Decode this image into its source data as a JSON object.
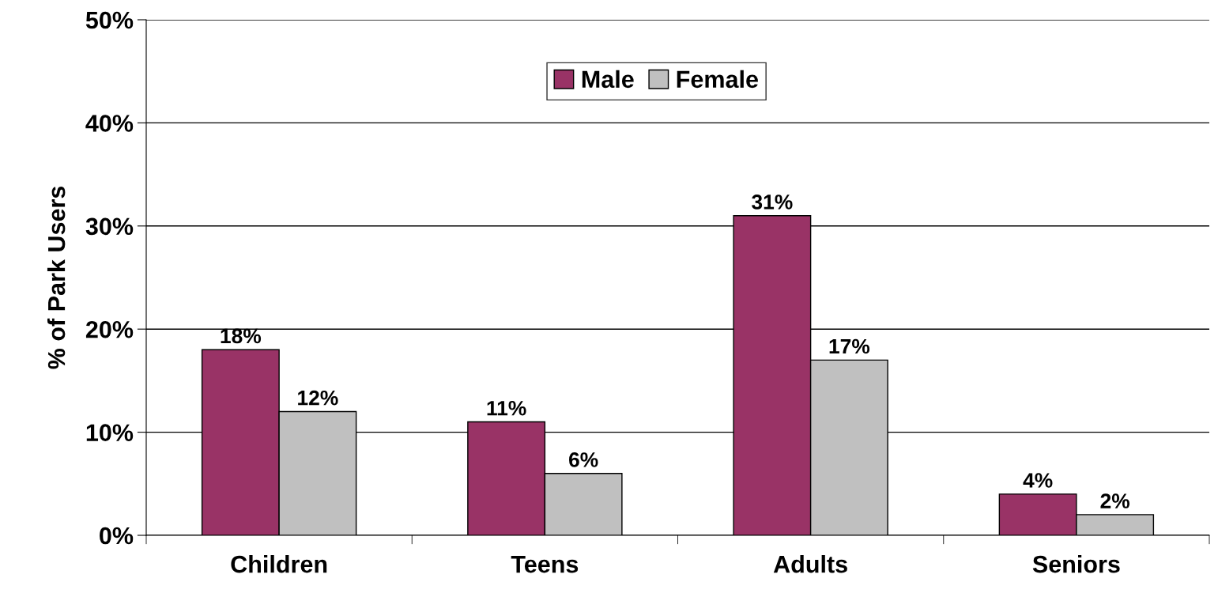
{
  "chart_data": {
    "type": "bar",
    "ylabel": "% of Park Users",
    "categories": [
      "Children",
      "Teens",
      "Adults",
      "Seniors"
    ],
    "series": [
      {
        "name": "Male",
        "color": "#993366",
        "values": [
          18,
          11,
          31,
          4
        ],
        "value_labels": [
          "18%",
          "11%",
          "31%",
          "4%"
        ]
      },
      {
        "name": "Female",
        "color": "#c0c0c0",
        "values": [
          12,
          6,
          17,
          2
        ],
        "value_labels": [
          "12%",
          "6%",
          "17%",
          "2%"
        ]
      }
    ],
    "ylim": [
      0,
      50
    ],
    "yticks": [
      {
        "value": 0,
        "label": "0%"
      },
      {
        "value": 10,
        "label": "10%"
      },
      {
        "value": 20,
        "label": "20%"
      },
      {
        "value": 30,
        "label": "30%"
      },
      {
        "value": 40,
        "label": "40%"
      },
      {
        "value": 50,
        "label": "50%"
      }
    ],
    "grid": "y",
    "legend": "top"
  }
}
